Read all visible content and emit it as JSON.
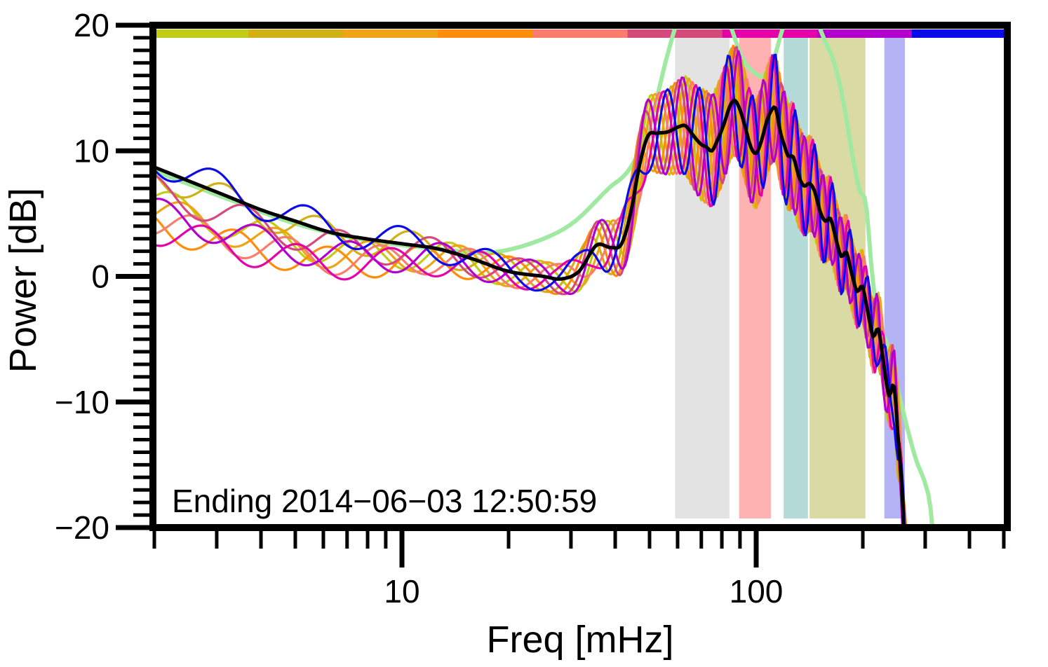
{
  "chart_data": {
    "type": "line",
    "xlabel": "Freq [mHz]",
    "ylabel": "Power [dB]",
    "annotation": "Ending 2014−06−03 12:50:59",
    "x_scale": "log",
    "xlim_mhz": [
      1.93,
      515
    ],
    "ylim_db": [
      -20,
      20
    ],
    "grid": false,
    "legend": false,
    "x_major_ticks": [
      {
        "f": 10,
        "label": "10"
      },
      {
        "f": 100,
        "label": "100"
      }
    ],
    "x_minor_ticks": [
      2,
      3,
      4,
      5,
      6,
      7,
      8,
      9,
      20,
      30,
      40,
      50,
      60,
      70,
      80,
      90,
      200,
      300,
      400,
      500
    ],
    "y_major_ticks": [
      {
        "db": 20,
        "label": "20"
      },
      {
        "db": 10,
        "label": "10"
      },
      {
        "db": 0,
        "label": "0"
      },
      {
        "db": -10,
        "label": "−10"
      },
      {
        "db": -20,
        "label": "−20"
      }
    ],
    "y_minor_step_db": 1,
    "frequency_bands": [
      {
        "name": "band-gray",
        "f_start_mhz": 59,
        "f_end_mhz": 84,
        "color": "#e3e3e3"
      },
      {
        "name": "band-pink",
        "f_start_mhz": 89.5,
        "f_end_mhz": 110,
        "color": "#ffb2b2"
      },
      {
        "name": "band-teal",
        "f_start_mhz": 119.5,
        "f_end_mhz": 140,
        "color": "#b5dbd9"
      },
      {
        "name": "band-khaki",
        "f_start_mhz": 141.5,
        "f_end_mhz": 203.5,
        "color": "#dadaa5"
      },
      {
        "name": "band-periwinkle",
        "f_start_mhz": 230,
        "f_end_mhz": 263,
        "color": "#b3b3f5"
      }
    ],
    "colorbar_segments": [
      "#c2cc14",
      "#d2b014",
      "#eea414",
      "#ff8c0a",
      "#f87d6e",
      "#d44a7d",
      "#e303a9",
      "#b201cd",
      "#0b0be8"
    ],
    "mean_spectrum": {
      "name": "mean-spectrum",
      "color": "#000000",
      "line_width": 5,
      "points_f_db": [
        [
          2.0,
          8.7
        ],
        [
          2.5,
          7.6
        ],
        [
          3.2,
          6.4
        ],
        [
          4.0,
          5.3
        ],
        [
          5.0,
          4.4
        ],
        [
          6.3,
          3.5
        ],
        [
          7.9,
          3.0
        ],
        [
          10,
          2.6
        ],
        [
          12.6,
          2.2
        ],
        [
          15.8,
          1.4
        ],
        [
          20,
          0.4
        ],
        [
          25.1,
          0.0
        ],
        [
          28.2,
          -0.2
        ],
        [
          31.6,
          0.4
        ],
        [
          35.5,
          2.5
        ],
        [
          38.9,
          2.3
        ],
        [
          41.7,
          2.6
        ],
        [
          44.2,
          5.0
        ],
        [
          46.8,
          8.8
        ],
        [
          49.5,
          11.2
        ],
        [
          52.5,
          11.4
        ],
        [
          56.2,
          11.5
        ],
        [
          60.3,
          11.9
        ],
        [
          63.1,
          12.0
        ],
        [
          66.1,
          11.3
        ],
        [
          70,
          10.5
        ],
        [
          72.4,
          10.3
        ],
        [
          75,
          10.0
        ],
        [
          77.6,
          10.8
        ],
        [
          81.3,
          12.2
        ],
        [
          84.1,
          13.5
        ],
        [
          87.1,
          14.0
        ],
        [
          90.2,
          13.2
        ],
        [
          93.3,
          11.8
        ],
        [
          96.6,
          10.3
        ],
        [
          100,
          9.8
        ],
        [
          103.5,
          10.8
        ],
        [
          107.2,
          12.4
        ],
        [
          110.9,
          13.3
        ],
        [
          113.5,
          13.4
        ],
        [
          117,
          11.5
        ],
        [
          120.2,
          10.4
        ],
        [
          123,
          9.6
        ],
        [
          127.4,
          9.5
        ],
        [
          131.8,
          8.0
        ],
        [
          136.5,
          7.2
        ],
        [
          141.3,
          7.4
        ],
        [
          146.2,
          6.8
        ],
        [
          151.4,
          5.2
        ],
        [
          156.7,
          4.4
        ],
        [
          162.2,
          4.6
        ],
        [
          167.9,
          3.0
        ],
        [
          173.8,
          1.6
        ],
        [
          179.9,
          1.9
        ],
        [
          186.2,
          0.2
        ],
        [
          192.8,
          -1.2
        ],
        [
          199.5,
          -0.8
        ],
        [
          206.5,
          -2.8
        ],
        [
          213.8,
          -4.8
        ],
        [
          221.3,
          -4.2
        ],
        [
          229.1,
          -7.0
        ],
        [
          237.1,
          -9.5
        ],
        [
          245.5,
          -8.8
        ],
        [
          251,
          -12.5
        ],
        [
          257,
          -16.0
        ],
        [
          262,
          -21.0
        ]
      ]
    },
    "reference_spectrum": {
      "name": "reference-spectrum",
      "color": "#a0e9a0",
      "line_width": 6,
      "points_f_db": [
        [
          2.0,
          8.4
        ],
        [
          3.2,
          6.2
        ],
        [
          5.0,
          4.2
        ],
        [
          7.9,
          2.9
        ],
        [
          12.6,
          2.2
        ],
        [
          17.8,
          1.9
        ],
        [
          25.1,
          3.0
        ],
        [
          30.5,
          4.3
        ],
        [
          38.3,
          7.0
        ],
        [
          44,
          8.6
        ],
        [
          50,
          12.0
        ],
        [
          56,
          17.5
        ],
        [
          61,
          21.0
        ],
        [
          72,
          25.0
        ],
        [
          84.5,
          20.0
        ],
        [
          91,
          17.5
        ],
        [
          98,
          16.3
        ],
        [
          105,
          16.0
        ],
        [
          112,
          17.3
        ],
        [
          119,
          19.8
        ],
        [
          124,
          21.0
        ],
        [
          135,
          23.5
        ],
        [
          148,
          20.5
        ],
        [
          155,
          19.0
        ],
        [
          166,
          17.0
        ],
        [
          176,
          14.0
        ],
        [
          186,
          10.0
        ],
        [
          196,
          6.8
        ],
        [
          204,
          5.8
        ],
        [
          212,
          0.5
        ],
        [
          221,
          -3.5
        ],
        [
          235,
          -5.5
        ],
        [
          251,
          -9.0
        ],
        [
          282,
          -14.5
        ],
        [
          300,
          -16.5
        ],
        [
          309,
          -18.0
        ],
        [
          318,
          -21.5
        ]
      ]
    },
    "member_spectra": {
      "line_width": 3.2,
      "amplitude_knots_u_db": [
        [
          0.3,
          1.2
        ],
        [
          1.45,
          1.2
        ],
        [
          1.6,
          2.2
        ],
        [
          1.75,
          3.4
        ],
        [
          1.85,
          4.5
        ],
        [
          2.1,
          4.3
        ],
        [
          2.25,
          3.0
        ],
        [
          2.55,
          2.4
        ]
      ],
      "period_knots_u_dec": [
        [
          0.3,
          0.27
        ],
        [
          1.4,
          0.25
        ],
        [
          1.6,
          0.13
        ],
        [
          1.8,
          0.09
        ],
        [
          2.0,
          0.065
        ],
        [
          2.2,
          0.05
        ],
        [
          2.5,
          0.05
        ]
      ],
      "left_offset_fade_u": [
        0.3,
        1.3
      ],
      "tail_start_u": 2.32,
      "tail_gain_db_per_dec": 40,
      "series": [
        {
          "name": "spectrum-1",
          "color": "#c2cc14",
          "left_offset_db": -2.8,
          "phase_rad": 0.0,
          "tail": 0.1
        },
        {
          "name": "spectrum-2",
          "color": "#d2b014",
          "left_offset_db": -0.4,
          "phase_rad": 2.792,
          "tail": -0.22
        },
        {
          "name": "spectrum-3",
          "color": "#eea414",
          "left_offset_db": -3.4,
          "phase_rad": 5.585,
          "tail": 0.32
        },
        {
          "name": "spectrum-4",
          "color": "#ff8c0a",
          "left_offset_db": -4.7,
          "phase_rad": 2.094,
          "tail": 0.48
        },
        {
          "name": "spectrum-5",
          "color": "#f87d6e",
          "left_offset_db": -4.3,
          "phase_rad": 4.887,
          "tail": -0.08
        },
        {
          "name": "spectrum-6",
          "color": "#d44a7d",
          "left_offset_db": -1.8,
          "phase_rad": 1.396,
          "tail": 0.2
        },
        {
          "name": "spectrum-7",
          "color": "#e303a9",
          "left_offset_db": -5.0,
          "phase_rad": 4.189,
          "tail": -0.3
        },
        {
          "name": "spectrum-8",
          "color": "#b201cd",
          "left_offset_db": -3.6,
          "phase_rad": 0.698,
          "tail": 0.06
        },
        {
          "name": "spectrum-9",
          "color": "#0b0be8",
          "left_offset_db": 0.6,
          "phase_rad": 3.491,
          "tail": -0.18
        }
      ]
    }
  }
}
